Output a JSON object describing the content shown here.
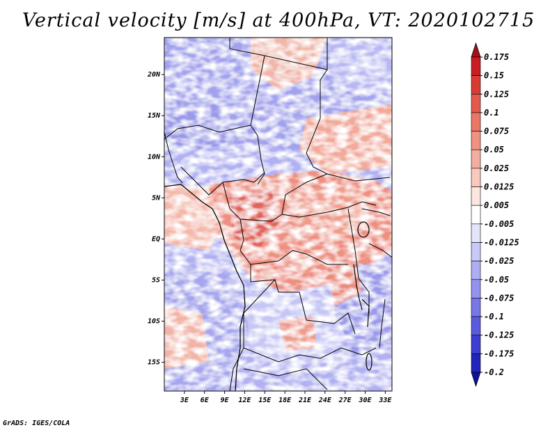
{
  "chart_data": {
    "type": "heatmap",
    "title": "Vertical velocity [m/s] at 400hPa, VT: 2020102715",
    "variable": "Vertical velocity",
    "units": "m/s",
    "level": "400hPa",
    "valid_time": "2020102715",
    "x_ticks": [
      "3E",
      "6E",
      "9E",
      "12E",
      "15E",
      "18E",
      "21E",
      "24E",
      "27E",
      "30E",
      "33E"
    ],
    "y_ticks": [
      "20N",
      "15N",
      "10N",
      "5N",
      "EQ",
      "5S",
      "10S",
      "15S"
    ],
    "x_range_deg": [
      0,
      34
    ],
    "y_range_deg": [
      -18.5,
      24.5
    ],
    "colorbar": {
      "levels": [
        "0.175",
        "0.15",
        "0.125",
        "0.1",
        "0.075",
        "0.05",
        "0.025",
        "0.0125",
        "0.005",
        "-0.005",
        "-0.0125",
        "-0.025",
        "-0.05",
        "-0.075",
        "-0.1",
        "-0.125",
        "-0.175",
        "-0.2"
      ],
      "colors": [
        "#a50f15",
        "#c81d22",
        "#d93a34",
        "#e35a4c",
        "#ea7763",
        "#ef9380",
        "#f4ae9f",
        "#f8cabe",
        "#fce6df",
        "#ffffff",
        "#e4e4fb",
        "#c9c9f7",
        "#aeaef3",
        "#9393ee",
        "#7777e8",
        "#5b5be0",
        "#3d3dd2",
        "#2323bd",
        "#1010a0"
      ]
    }
  },
  "footer": "GrADS: IGES/COLA"
}
